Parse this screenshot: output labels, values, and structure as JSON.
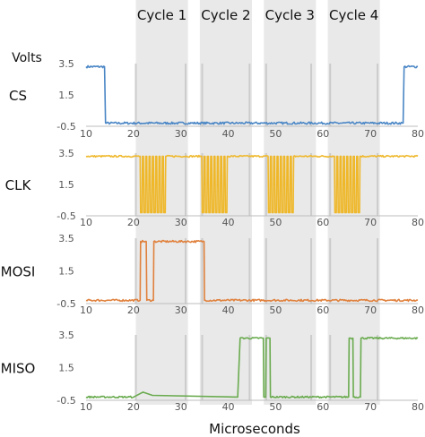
{
  "chart_data": {
    "type": "line",
    "ylabel": "Volts",
    "xlabel": "Microseconds",
    "xlim": [
      10,
      80
    ],
    "ylim": [
      -0.5,
      3.5
    ],
    "xticks": [
      10,
      20,
      30,
      40,
      50,
      60,
      70,
      80
    ],
    "yticks": [
      -0.5,
      1.5,
      3.5
    ],
    "grid": false,
    "cycles": [
      {
        "label": "Cycle 1",
        "start": 20.5,
        "end": 31.5
      },
      {
        "label": "Cycle 2",
        "start": 34,
        "end": 45
      },
      {
        "label": "Cycle 3",
        "start": 47.5,
        "end": 58.5
      },
      {
        "label": "Cycle 4",
        "start": 61,
        "end": 72
      }
    ],
    "marker_lines": [
      20.5,
      31,
      34.5,
      44.5,
      48,
      57.5,
      61.5,
      71.5
    ],
    "panels": [
      {
        "name": "CS",
        "color": "#4a86c5",
        "noise": 0.07,
        "points": [
          [
            10,
            3.3
          ],
          [
            13.9,
            3.3
          ],
          [
            14.1,
            -0.3
          ],
          [
            76.9,
            -0.3
          ],
          [
            77.1,
            3.3
          ],
          [
            80,
            3.3
          ]
        ]
      },
      {
        "name": "CLK",
        "color": "#efb82b",
        "noise": 0.05,
        "points": [
          [
            10,
            3.3
          ],
          [
            21.4,
            3.3
          ],
          [
            21.5,
            -0.3
          ],
          [
            21.8,
            -0.3
          ],
          [
            21.9,
            3.3
          ],
          [
            22.1,
            3.3
          ],
          [
            22.2,
            -0.3
          ],
          [
            22.5,
            -0.3
          ],
          [
            22.6,
            3.3
          ],
          [
            22.8,
            3.3
          ],
          [
            22.9,
            -0.3
          ],
          [
            23.2,
            -0.3
          ],
          [
            23.3,
            3.3
          ],
          [
            23.5,
            3.3
          ],
          [
            23.6,
            -0.3
          ],
          [
            23.9,
            -0.3
          ],
          [
            24.0,
            3.3
          ],
          [
            24.2,
            3.3
          ],
          [
            24.3,
            -0.3
          ],
          [
            24.6,
            -0.3
          ],
          [
            24.7,
            3.3
          ],
          [
            24.9,
            3.3
          ],
          [
            25.0,
            -0.3
          ],
          [
            25.3,
            -0.3
          ],
          [
            25.4,
            3.3
          ],
          [
            25.6,
            3.3
          ],
          [
            25.7,
            -0.3
          ],
          [
            26.0,
            -0.3
          ],
          [
            26.1,
            3.3
          ],
          [
            26.3,
            3.3
          ],
          [
            26.4,
            -0.3
          ],
          [
            26.7,
            -0.3
          ],
          [
            26.8,
            3.3
          ],
          [
            34.4,
            3.3
          ],
          [
            34.5,
            -0.3
          ],
          [
            34.8,
            -0.3
          ],
          [
            34.9,
            3.3
          ],
          [
            35.1,
            3.3
          ],
          [
            35.2,
            -0.3
          ],
          [
            35.5,
            -0.3
          ],
          [
            35.6,
            3.3
          ],
          [
            35.8,
            3.3
          ],
          [
            35.9,
            -0.3
          ],
          [
            36.2,
            -0.3
          ],
          [
            36.3,
            3.3
          ],
          [
            36.5,
            3.3
          ],
          [
            36.6,
            -0.3
          ],
          [
            36.9,
            -0.3
          ],
          [
            37.0,
            3.3
          ],
          [
            37.2,
            3.3
          ],
          [
            37.3,
            -0.3
          ],
          [
            37.6,
            -0.3
          ],
          [
            37.7,
            3.3
          ],
          [
            37.9,
            3.3
          ],
          [
            38.0,
            -0.3
          ],
          [
            38.3,
            -0.3
          ],
          [
            38.4,
            3.3
          ],
          [
            38.6,
            3.3
          ],
          [
            38.7,
            -0.3
          ],
          [
            39.0,
            -0.3
          ],
          [
            39.1,
            3.3
          ],
          [
            39.3,
            3.3
          ],
          [
            39.4,
            -0.3
          ],
          [
            39.7,
            -0.3
          ],
          [
            39.8,
            3.3
          ],
          [
            48.4,
            3.3
          ],
          [
            48.5,
            -0.3
          ],
          [
            48.8,
            -0.3
          ],
          [
            48.9,
            3.3
          ],
          [
            49.1,
            3.3
          ],
          [
            49.2,
            -0.3
          ],
          [
            49.5,
            -0.3
          ],
          [
            49.6,
            3.3
          ],
          [
            49.8,
            3.3
          ],
          [
            49.9,
            -0.3
          ],
          [
            50.2,
            -0.3
          ],
          [
            50.3,
            3.3
          ],
          [
            50.5,
            3.3
          ],
          [
            50.6,
            -0.3
          ],
          [
            50.9,
            -0.3
          ],
          [
            51.0,
            3.3
          ],
          [
            51.2,
            3.3
          ],
          [
            51.3,
            -0.3
          ],
          [
            51.6,
            -0.3
          ],
          [
            51.7,
            3.3
          ],
          [
            51.9,
            3.3
          ],
          [
            52.0,
            -0.3
          ],
          [
            52.3,
            -0.3
          ],
          [
            52.4,
            3.3
          ],
          [
            52.6,
            3.3
          ],
          [
            52.7,
            -0.3
          ],
          [
            53.0,
            -0.3
          ],
          [
            53.1,
            3.3
          ],
          [
            53.3,
            3.3
          ],
          [
            53.4,
            -0.3
          ],
          [
            53.7,
            -0.3
          ],
          [
            53.8,
            3.3
          ],
          [
            62.4,
            3.3
          ],
          [
            62.5,
            -0.3
          ],
          [
            62.8,
            -0.3
          ],
          [
            62.9,
            3.3
          ],
          [
            63.1,
            3.3
          ],
          [
            63.2,
            -0.3
          ],
          [
            63.5,
            -0.3
          ],
          [
            63.6,
            3.3
          ],
          [
            63.8,
            3.3
          ],
          [
            63.9,
            -0.3
          ],
          [
            64.2,
            -0.3
          ],
          [
            64.3,
            3.3
          ],
          [
            64.5,
            3.3
          ],
          [
            64.6,
            -0.3
          ],
          [
            64.9,
            -0.3
          ],
          [
            65.0,
            3.3
          ],
          [
            65.2,
            3.3
          ],
          [
            65.3,
            -0.3
          ],
          [
            65.6,
            -0.3
          ],
          [
            65.7,
            3.3
          ],
          [
            65.9,
            3.3
          ],
          [
            66.0,
            -0.3
          ],
          [
            66.3,
            -0.3
          ],
          [
            66.4,
            3.3
          ],
          [
            66.6,
            3.3
          ],
          [
            66.7,
            -0.3
          ],
          [
            67.0,
            -0.3
          ],
          [
            67.1,
            3.3
          ],
          [
            67.3,
            3.3
          ],
          [
            67.4,
            -0.3
          ],
          [
            67.7,
            -0.3
          ],
          [
            67.8,
            3.3
          ],
          [
            80,
            3.3
          ]
        ]
      },
      {
        "name": "MOSI",
        "color": "#e0813d",
        "noise": 0.06,
        "points": [
          [
            10,
            -0.3
          ],
          [
            21.4,
            -0.3
          ],
          [
            21.5,
            3.3
          ],
          [
            22.7,
            3.3
          ],
          [
            22.8,
            -0.3
          ],
          [
            24.2,
            -0.3
          ],
          [
            24.3,
            3.3
          ],
          [
            34.9,
            3.3
          ],
          [
            35.0,
            -0.3
          ],
          [
            80,
            -0.3
          ]
        ]
      },
      {
        "name": "MISO",
        "color": "#6aab4f",
        "noise": 0.05,
        "points": [
          [
            10,
            -0.3
          ],
          [
            20,
            -0.3
          ],
          [
            22,
            0
          ],
          [
            24,
            -0.2
          ],
          [
            42,
            -0.3
          ],
          [
            42.5,
            3.3
          ],
          [
            47.4,
            3.3
          ],
          [
            47.5,
            -0.3
          ],
          [
            47.9,
            -0.3
          ],
          [
            48.0,
            3.3
          ],
          [
            48.8,
            3.3
          ],
          [
            48.9,
            -0.3
          ],
          [
            65.4,
            -0.3
          ],
          [
            65.5,
            3.3
          ],
          [
            66.3,
            3.3
          ],
          [
            66.4,
            -0.3
          ],
          [
            67.9,
            -0.3
          ],
          [
            68.0,
            3.3
          ],
          [
            80,
            3.3
          ]
        ]
      }
    ]
  }
}
